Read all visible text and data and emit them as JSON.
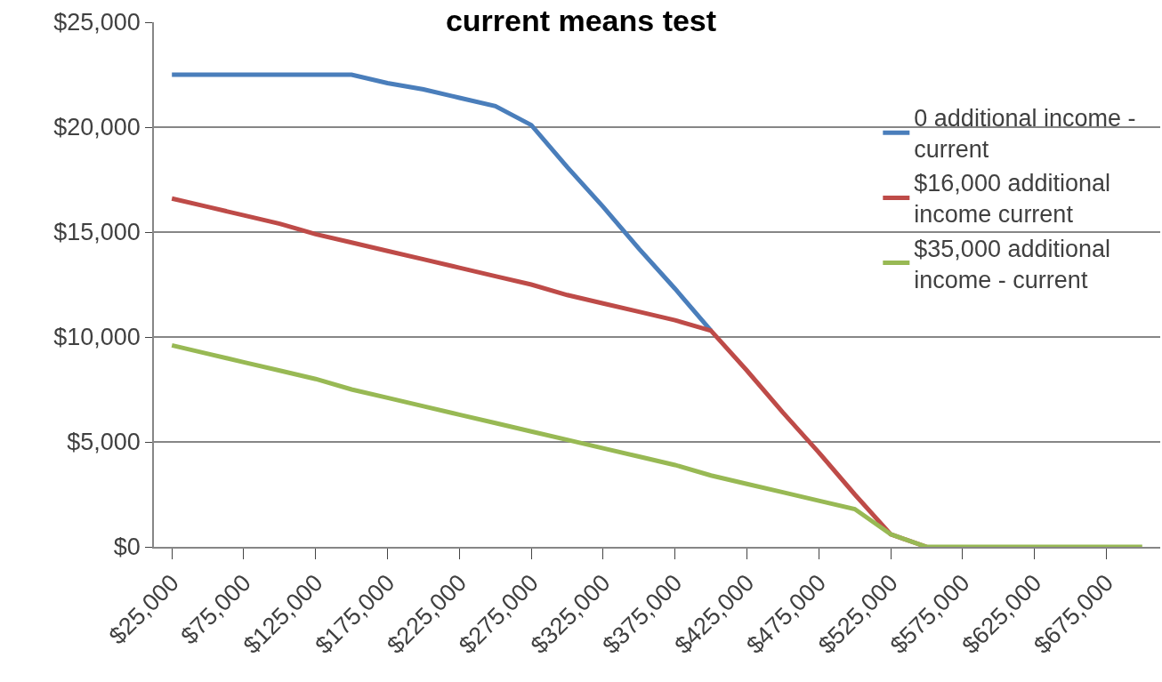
{
  "chart_data": {
    "type": "line",
    "title": "current means test",
    "categories": [
      "$25,000",
      null,
      "$75,000",
      null,
      "$125,000",
      null,
      "$175,000",
      null,
      "$225,000",
      null,
      "$275,000",
      null,
      "$325,000",
      null,
      "$375,000",
      null,
      "$425,000",
      null,
      "$475,000",
      null,
      "$525,000",
      null,
      "$575,000",
      null,
      "$625,000",
      null,
      "$675,000",
      null
    ],
    "series": [
      {
        "name": "0 additional income - current",
        "color": "#4a7ebb",
        "values": [
          22500,
          22500,
          22500,
          22500,
          22500,
          22500,
          22100,
          21800,
          21400,
          21000,
          20100,
          18100,
          16200,
          14200,
          12300,
          10300,
          null,
          null,
          null,
          null,
          null,
          null,
          null,
          null,
          null,
          null,
          null,
          null
        ]
      },
      {
        "name": "$16,000 additional income current",
        "color": "#be4b48",
        "values": [
          16600,
          16200,
          15800,
          15400,
          14900,
          14500,
          14100,
          13700,
          13300,
          12900,
          12500,
          12000,
          11600,
          11200,
          10800,
          10300,
          8400,
          6400,
          4500,
          2500,
          600,
          0,
          null,
          null,
          null,
          null,
          null,
          null
        ]
      },
      {
        "name": "$35,000 additional income - current",
        "color": "#98b954",
        "values": [
          9600,
          9200,
          8800,
          8400,
          8000,
          7500,
          7100,
          6700,
          6300,
          5900,
          5500,
          5100,
          4700,
          4300,
          3900,
          3400,
          3000,
          2600,
          2200,
          1800,
          600,
          0,
          0,
          0,
          0,
          0,
          0,
          0
        ]
      }
    ],
    "ylim": [
      0,
      25000
    ],
    "yticks": [
      {
        "value": 0,
        "label": "$0"
      },
      {
        "value": 5000,
        "label": "$5,000"
      },
      {
        "value": 10000,
        "label": "$10,000"
      },
      {
        "value": 15000,
        "label": "$15,000"
      },
      {
        "value": 20000,
        "label": "$20,000"
      },
      {
        "value": 25000,
        "label": "$25,000"
      }
    ],
    "grid": "y",
    "legend": "top right",
    "marker": "none",
    "line_style": "solid"
  }
}
